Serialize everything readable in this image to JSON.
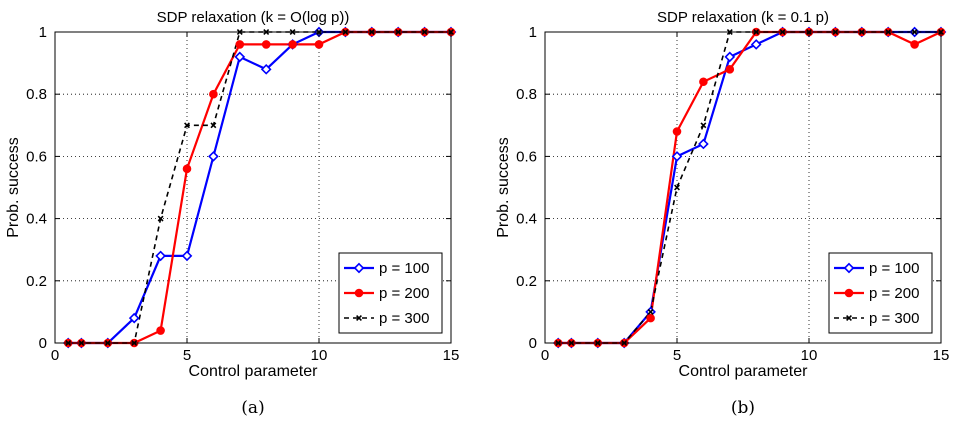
{
  "chart_data": [
    {
      "type": "line",
      "title": "SDP relaxation (k = O(log p))",
      "xlabel": "Control parameter",
      "ylabel": "Prob. success",
      "caption": "(a)",
      "xlim": [
        0,
        15
      ],
      "ylim": [
        0,
        1
      ],
      "xticks": [
        "0",
        "5",
        "10",
        "15"
      ],
      "yticks": [
        "0",
        "0.2",
        "0.4",
        "0.6",
        "0.8",
        "1"
      ],
      "grid": true,
      "legend_position": "lower-right",
      "series": [
        {
          "name": "p = 100",
          "color": "#0000ff",
          "marker": "diamond",
          "line": "solid",
          "x": [
            0.5,
            1,
            2,
            3,
            4,
            5,
            6,
            7,
            8,
            9,
            10,
            11,
            12,
            13,
            14,
            15
          ],
          "y": [
            0,
            0,
            0,
            0.08,
            0.28,
            0.28,
            0.6,
            0.92,
            0.88,
            0.96,
            1,
            1,
            1,
            1,
            1,
            1
          ]
        },
        {
          "name": "p = 200",
          "color": "#ff0000",
          "marker": "circle",
          "line": "solid",
          "x": [
            0.5,
            1,
            2,
            3,
            4,
            5,
            6,
            7,
            8,
            9,
            10,
            11,
            12,
            13,
            14,
            15
          ],
          "y": [
            0,
            0,
            0,
            0,
            0.04,
            0.56,
            0.8,
            0.96,
            0.96,
            0.96,
            0.96,
            1,
            1,
            1,
            1,
            1
          ]
        },
        {
          "name": "p = 300",
          "color": "#000000",
          "marker": "x",
          "line": "dashed",
          "x": [
            0.5,
            1,
            2,
            3,
            4,
            5,
            6,
            7,
            8,
            9,
            10,
            11,
            12,
            13,
            14,
            15
          ],
          "y": [
            0,
            0,
            0,
            0,
            0.4,
            0.7,
            0.7,
            1,
            1,
            1,
            1,
            1,
            1,
            1,
            1,
            1
          ]
        }
      ]
    },
    {
      "type": "line",
      "title": "SDP relaxation (k = 0.1 p)",
      "xlabel": "Control parameter",
      "ylabel": "Prob. success",
      "caption": "(b)",
      "xlim": [
        0,
        15
      ],
      "ylim": [
        0,
        1
      ],
      "xticks": [
        "0",
        "5",
        "10",
        "15"
      ],
      "yticks": [
        "0",
        "0.2",
        "0.4",
        "0.6",
        "0.8",
        "1"
      ],
      "grid": true,
      "legend_position": "lower-right",
      "series": [
        {
          "name": "p = 100",
          "color": "#0000ff",
          "marker": "diamond",
          "line": "solid",
          "x": [
            0.5,
            1,
            2,
            3,
            4,
            5,
            6,
            7,
            8,
            9,
            10,
            11,
            12,
            13,
            14,
            15
          ],
          "y": [
            0,
            0,
            0,
            0,
            0.1,
            0.6,
            0.64,
            0.92,
            0.96,
            1,
            1,
            1,
            1,
            1,
            1,
            1
          ]
        },
        {
          "name": "p = 200",
          "color": "#ff0000",
          "marker": "circle",
          "line": "solid",
          "x": [
            0.5,
            1,
            2,
            3,
            4,
            5,
            6,
            7,
            8,
            9,
            10,
            11,
            12,
            13,
            14,
            15
          ],
          "y": [
            0,
            0,
            0,
            0,
            0.08,
            0.68,
            0.84,
            0.88,
            1,
            1,
            1,
            1,
            1,
            1,
            0.96,
            1
          ]
        },
        {
          "name": "p = 300",
          "color": "#000000",
          "marker": "x",
          "line": "dashed",
          "x": [
            0.5,
            1,
            2,
            3,
            4,
            5,
            6,
            7,
            8,
            9,
            10,
            11,
            12,
            13,
            14,
            15
          ],
          "y": [
            0,
            0,
            0,
            0,
            0.1,
            0.5,
            0.7,
            1,
            1,
            1,
            1,
            1,
            1,
            1,
            1,
            1
          ]
        }
      ]
    }
  ]
}
